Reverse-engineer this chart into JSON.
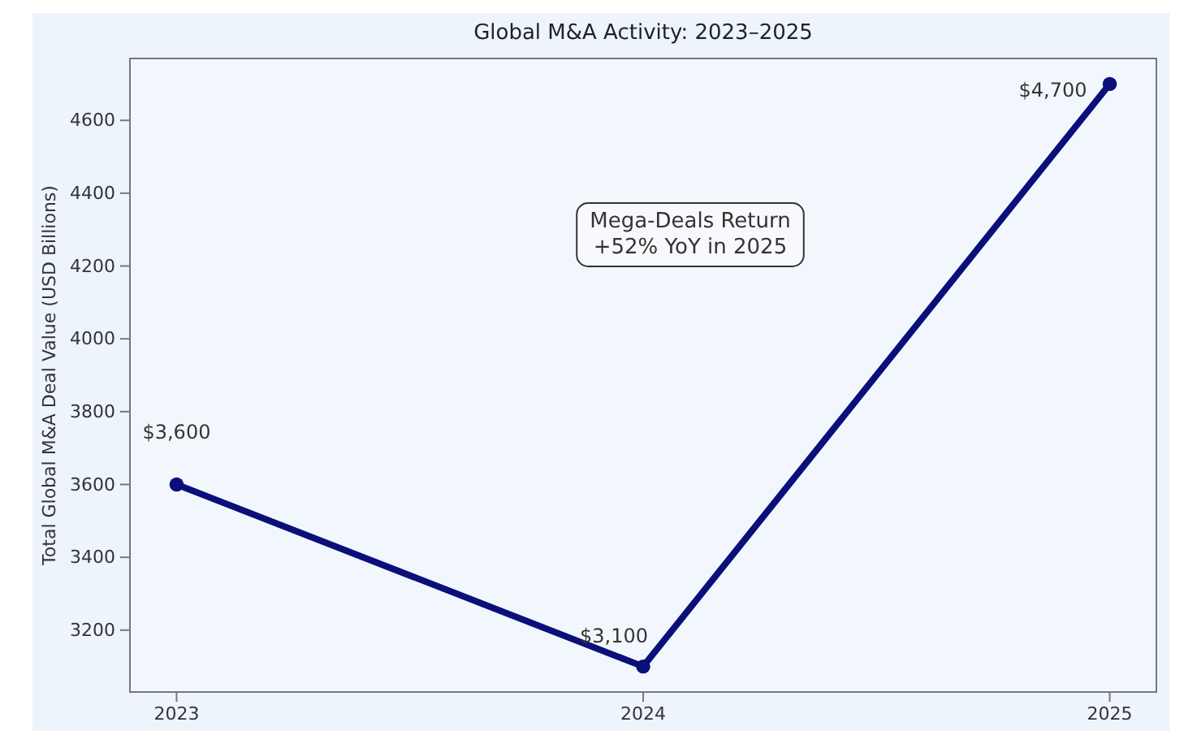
{
  "chart_data": {
    "type": "line",
    "title": "Global M&A Activity: 2023–2025",
    "ylabel": "Total Global M&A Deal Value (USD Billions)",
    "x": [
      2023,
      2024,
      2025
    ],
    "xlim": [
      2022.9,
      2025.1
    ],
    "xticks": [
      2023,
      2024,
      2025
    ],
    "ylim": [
      3030,
      4770
    ],
    "yticks": [
      3200,
      3400,
      3600,
      3800,
      4000,
      4200,
      4400,
      4600
    ],
    "series": [
      {
        "color": "#0a0f7a",
        "values": [
          3600,
          3100,
          4700
        ],
        "value_labels": [
          "$3,600",
          "$3,100",
          "$4,700"
        ]
      }
    ],
    "marker": "circle",
    "line_style": "solid",
    "grid": false,
    "annotations": [
      "Mega-Deals Return\n+52% YoY in 2025"
    ]
  }
}
